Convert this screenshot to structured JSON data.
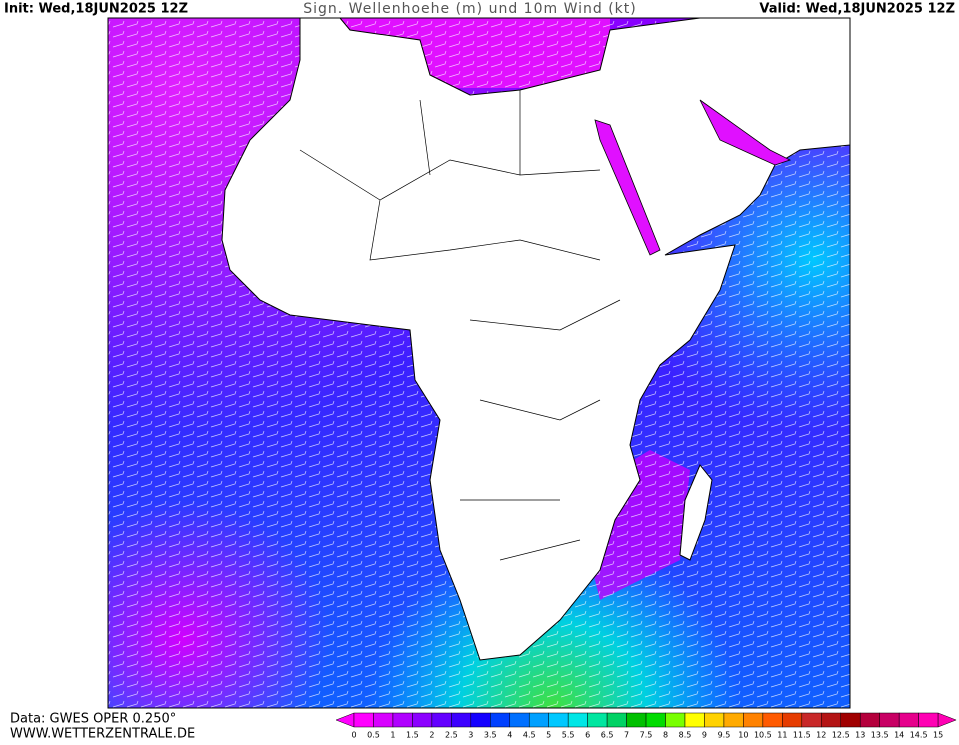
{
  "header": {
    "init": "Init: Wed,18JUN2025 12Z",
    "title": "Sign. Wellenhoehe (m) und 10m Wind (kt)",
    "valid": "Valid: Wed,18JUN2025 12Z"
  },
  "footer": {
    "source": "Data: GWES OPER 0.250°",
    "site": "WWW.WETTERZENTRALE.DE"
  },
  "legend": {
    "labels": [
      0,
      0.5,
      1,
      1.5,
      2,
      2.5,
      3,
      3.5,
      4,
      4.5,
      5,
      5.5,
      6,
      6.5,
      7,
      7.5,
      8,
      8.5,
      9,
      9.5,
      10,
      10.5,
      11,
      11.5,
      12,
      12.5,
      13,
      13.5,
      14,
      14.5,
      15
    ],
    "colors": [
      "#ff00ff",
      "#d800ff",
      "#b000ff",
      "#8c00ff",
      "#6400ff",
      "#3c00ff",
      "#1400ff",
      "#0040ff",
      "#0070ff",
      "#00a0ff",
      "#00c8ff",
      "#00e6e6",
      "#00e6a0",
      "#00d264",
      "#00c000",
      "#00dc00",
      "#78ff00",
      "#ffff00",
      "#ffd200",
      "#ffaa00",
      "#ff8200",
      "#ff5a00",
      "#e63c00",
      "#c82828",
      "#b41414",
      "#a00000",
      "#b4003c",
      "#c80064",
      "#e6008c",
      "#ff00b4"
    ]
  }
}
